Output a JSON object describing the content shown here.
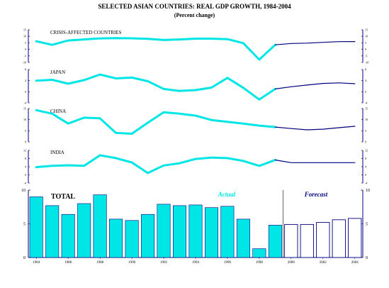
{
  "title": "SELECTED ASIAN COUNTRIES: REAL GDP GROWTH, 1984-2004",
  "subtitle": "(Percent change)",
  "colors": {
    "actual": "#00e5e5",
    "forecast": "#000080",
    "axis": "#000080",
    "text": "#000000"
  },
  "labels": {
    "actual": "Actual",
    "forecast": "Forecast"
  },
  "chart_data": [
    {
      "type": "line",
      "title": "CRISIS-AFFECTED COUNTRIES",
      "x": [
        1984,
        1985,
        1986,
        1987,
        1988,
        1989,
        1990,
        1991,
        1992,
        1993,
        1994,
        1995,
        1996,
        1997,
        1998,
        1999,
        2000,
        2001,
        2002,
        2003,
        2004
      ],
      "series": [
        {
          "values": [
            6.2,
            3.5,
            6.8,
            7.6,
            8.4,
            8.6,
            8.5,
            8.1,
            7.2,
            7.6,
            8.2,
            8.2,
            7.8,
            4.8,
            -7.8,
            3.5,
            null,
            null,
            null,
            null,
            null
          ]
        },
        {
          "values": [
            null,
            null,
            null,
            null,
            null,
            null,
            null,
            null,
            null,
            null,
            null,
            null,
            null,
            null,
            null,
            3.5,
            4.5,
            4.8,
            5.4,
            5.9,
            6.0
          ]
        }
      ],
      "ylim": [
        -10,
        15
      ],
      "yticks": [
        "15",
        "10",
        "5",
        "0",
        "-5",
        "-10"
      ]
    },
    {
      "type": "line",
      "title": "JAPAN",
      "x": [
        1984,
        1985,
        1986,
        1987,
        1988,
        1989,
        1990,
        1991,
        1992,
        1993,
        1994,
        1995,
        1996,
        1997,
        1998,
        1999,
        2000,
        2001,
        2002,
        2003,
        2004
      ],
      "series": [
        {
          "values": [
            4.0,
            4.3,
            2.9,
            4.2,
            6.2,
            4.8,
            5.1,
            3.8,
            1.0,
            0.3,
            0.6,
            1.5,
            5.0,
            1.4,
            -2.8,
            1.0,
            null,
            null,
            null,
            null,
            null
          ]
        },
        {
          "values": [
            null,
            null,
            null,
            null,
            null,
            null,
            null,
            null,
            null,
            null,
            null,
            null,
            null,
            null,
            null,
            1.0,
            1.8,
            2.4,
            3.0,
            3.2,
            2.9
          ]
        }
      ],
      "ylim": [
        -4,
        8
      ],
      "yticks": [
        "8",
        "4",
        "0",
        "-4"
      ]
    },
    {
      "type": "line",
      "title": "CHINA",
      "x": [
        1984,
        1985,
        1986,
        1987,
        1988,
        1989,
        1990,
        1991,
        1992,
        1993,
        1994,
        1995,
        1996,
        1997,
        1998,
        1999,
        2000,
        2001,
        2002,
        2003,
        2004
      ],
      "series": [
        {
          "values": [
            15.2,
            13.5,
            8.8,
            11.6,
            11.3,
            4.3,
            3.9,
            9.2,
            14.2,
            13.5,
            12.6,
            10.5,
            9.6,
            8.8,
            7.8,
            7.1,
            null,
            null,
            null,
            null,
            null
          ]
        },
        {
          "values": [
            null,
            null,
            null,
            null,
            null,
            null,
            null,
            null,
            null,
            null,
            null,
            null,
            null,
            null,
            null,
            7.1,
            6.4,
            5.8,
            6.1,
            6.8,
            7.5
          ]
        }
      ],
      "ylim": [
        0,
        16
      ],
      "yticks": [
        "15",
        "10",
        "5",
        "0"
      ]
    },
    {
      "type": "line",
      "title": "INDIA",
      "x": [
        1984,
        1985,
        1986,
        1987,
        1988,
        1989,
        1990,
        1991,
        1992,
        1993,
        1994,
        1995,
        1996,
        1997,
        1998,
        1999,
        2000,
        2001,
        2002,
        2003,
        2004
      ],
      "series": [
        {
          "values": [
            3.8,
            4.4,
            4.7,
            4.4,
            9.6,
            8.2,
            6.1,
            0.9,
            4.6,
            5.7,
            7.8,
            8.5,
            8.2,
            6.8,
            4.4,
            7.3,
            null,
            null,
            null,
            null,
            null
          ]
        },
        {
          "values": [
            null,
            null,
            null,
            null,
            null,
            null,
            null,
            null,
            null,
            null,
            null,
            null,
            null,
            null,
            null,
            7.3,
            6.0,
            6.0,
            6.0,
            6.0,
            6.0
          ]
        }
      ],
      "ylim": [
        -4,
        12
      ],
      "yticks": [
        "12",
        "8",
        "4",
        "0",
        "-4"
      ]
    },
    {
      "type": "bar",
      "title": "TOTAL",
      "categories": [
        "1984",
        "1985",
        "1986",
        "1987",
        "1988",
        "1989",
        "1990",
        "1991",
        "1992",
        "1993",
        "1994",
        "1995",
        "1996",
        "1997",
        "1998",
        "1999",
        "2000",
        "2001",
        "2002",
        "2003",
        "2004"
      ],
      "actual": [
        9.0,
        7.7,
        6.4,
        8.0,
        9.3,
        5.7,
        5.5,
        6.4,
        7.9,
        7.7,
        7.8,
        7.4,
        7.6,
        5.7,
        1.3,
        4.8,
        null,
        null,
        null,
        null,
        null
      ],
      "forecast": [
        null,
        null,
        null,
        null,
        null,
        null,
        null,
        null,
        null,
        null,
        null,
        null,
        null,
        null,
        null,
        null,
        4.9,
        4.9,
        5.2,
        5.6,
        5.8
      ],
      "ylim": [
        0,
        10
      ],
      "yticks": [
        "10",
        "5",
        "0"
      ],
      "xtick_labels": [
        "1984",
        "1986",
        "1988",
        "1990",
        "1992",
        "1994",
        "1996",
        "1998",
        "2000",
        "2002",
        "2004"
      ]
    }
  ]
}
